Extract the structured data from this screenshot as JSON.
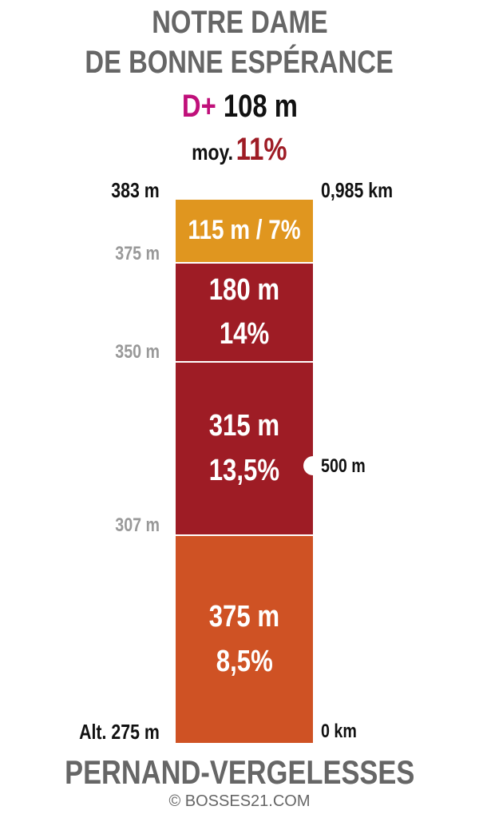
{
  "header": {
    "title": [
      "NOTRE DAME",
      "DE BONNE ESPÉRANCE"
    ],
    "gain_label": "D+",
    "gain": "108 m",
    "avg_label": "moy.",
    "avg": "11%"
  },
  "top": {
    "altitude": "383 m",
    "distance": "0,985 km"
  },
  "altitudes": [
    "375 m",
    "350 m",
    "307 m"
  ],
  "segments": [
    {
      "length": "115 m / 7%"
    },
    {
      "length": "180 m",
      "grade": "14%"
    },
    {
      "length": "315 m",
      "grade": "13,5%"
    },
    {
      "length": "375 m",
      "grade": "8,5%"
    }
  ],
  "marker": "500 m",
  "bottom": {
    "altitude": "Alt. 275 m",
    "distance": "0 km",
    "town": "PERNAND-VERGELESSES"
  },
  "credit": "© BOSSES21.COM"
}
